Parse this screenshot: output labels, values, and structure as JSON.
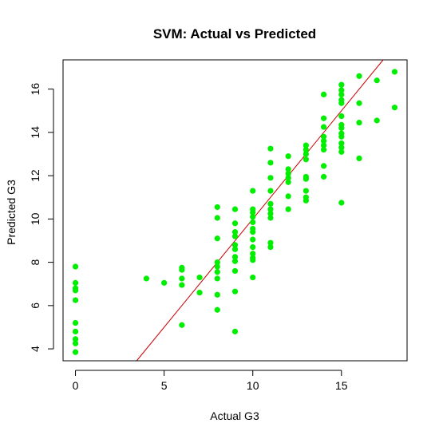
{
  "chart_data": {
    "type": "scatter",
    "title": "SVM: Actual vs Predicted",
    "xlabel": "Actual G3",
    "ylabel": "Predicted G3",
    "xlim": [
      -0.7,
      18.7
    ],
    "ylim": [
      3.45,
      17.35
    ],
    "xticks": [
      0,
      5,
      10,
      15
    ],
    "yticks": [
      4,
      6,
      8,
      10,
      12,
      14,
      16
    ],
    "grid": false,
    "point_color": "#00ee00",
    "line_color": "#cc0000",
    "reference_line": {
      "slope": 1,
      "intercept": 0
    },
    "points": [
      [
        0,
        7.8
      ],
      [
        0,
        7.05
      ],
      [
        0,
        6.8
      ],
      [
        0,
        6.7
      ],
      [
        0,
        6.25
      ],
      [
        0,
        5.2
      ],
      [
        0,
        4.8
      ],
      [
        0,
        4.45
      ],
      [
        0,
        4.25
      ],
      [
        0,
        3.85
      ],
      [
        4,
        7.25
      ],
      [
        5,
        7.05
      ],
      [
        6,
        7.75
      ],
      [
        6,
        7.65
      ],
      [
        6,
        7.25
      ],
      [
        6,
        6.95
      ],
      [
        6,
        5.1
      ],
      [
        7,
        7.3
      ],
      [
        7,
        6.6
      ],
      [
        8,
        10.55
      ],
      [
        8,
        10.05
      ],
      [
        8,
        9.1
      ],
      [
        8,
        8.0
      ],
      [
        8,
        7.8
      ],
      [
        8,
        7.55
      ],
      [
        8,
        7.25
      ],
      [
        8,
        6.5
      ],
      [
        8,
        5.8
      ],
      [
        9,
        10.45
      ],
      [
        9,
        9.8
      ],
      [
        9,
        9.4
      ],
      [
        9,
        9.2
      ],
      [
        9,
        8.8
      ],
      [
        9,
        8.6
      ],
      [
        9,
        8.25
      ],
      [
        9,
        8.05
      ],
      [
        9,
        7.6
      ],
      [
        9,
        6.65
      ],
      [
        9,
        4.8
      ],
      [
        10,
        11.3
      ],
      [
        10,
        10.45
      ],
      [
        10,
        10.3
      ],
      [
        10,
        10.1
      ],
      [
        10,
        9.85
      ],
      [
        10,
        9.55
      ],
      [
        10,
        9.4
      ],
      [
        10,
        9.05
      ],
      [
        10,
        8.7
      ],
      [
        10,
        8.4
      ],
      [
        10,
        8.2
      ],
      [
        10,
        8.1
      ],
      [
        10,
        7.3
      ],
      [
        11,
        13.25
      ],
      [
        11,
        12.6
      ],
      [
        11,
        11.9
      ],
      [
        11,
        11.3
      ],
      [
        11,
        10.7
      ],
      [
        11,
        10.45
      ],
      [
        11,
        10.25
      ],
      [
        11,
        10.05
      ],
      [
        11,
        8.9
      ],
      [
        11,
        8.7
      ],
      [
        12,
        12.9
      ],
      [
        12,
        12.3
      ],
      [
        12,
        12.1
      ],
      [
        12,
        11.9
      ],
      [
        12,
        11.7
      ],
      [
        12,
        11.05
      ],
      [
        12,
        10.45
      ],
      [
        13,
        13.4
      ],
      [
        13,
        13.2
      ],
      [
        13,
        13.0
      ],
      [
        13,
        12.75
      ],
      [
        13,
        11.95
      ],
      [
        13,
        11.85
      ],
      [
        13,
        11.3
      ],
      [
        13,
        11.0
      ],
      [
        13,
        10.85
      ],
      [
        14,
        15.75
      ],
      [
        14,
        14.65
      ],
      [
        14,
        14.25
      ],
      [
        14,
        13.8
      ],
      [
        14,
        13.6
      ],
      [
        14,
        13.4
      ],
      [
        14,
        13.2
      ],
      [
        14,
        12.45
      ],
      [
        14,
        11.95
      ],
      [
        15,
        16.2
      ],
      [
        15,
        15.95
      ],
      [
        15,
        15.75
      ],
      [
        15,
        15.5
      ],
      [
        15,
        15.35
      ],
      [
        15,
        14.75
      ],
      [
        15,
        14.35
      ],
      [
        15,
        14.2
      ],
      [
        15,
        13.95
      ],
      [
        15,
        13.8
      ],
      [
        15,
        13.5
      ],
      [
        15,
        13.3
      ],
      [
        15,
        13.1
      ],
      [
        15,
        10.75
      ],
      [
        16,
        16.6
      ],
      [
        16,
        15.35
      ],
      [
        16,
        14.45
      ],
      [
        16,
        12.8
      ],
      [
        17,
        16.4
      ],
      [
        17,
        14.55
      ],
      [
        18,
        16.8
      ],
      [
        18,
        15.15
      ]
    ]
  }
}
